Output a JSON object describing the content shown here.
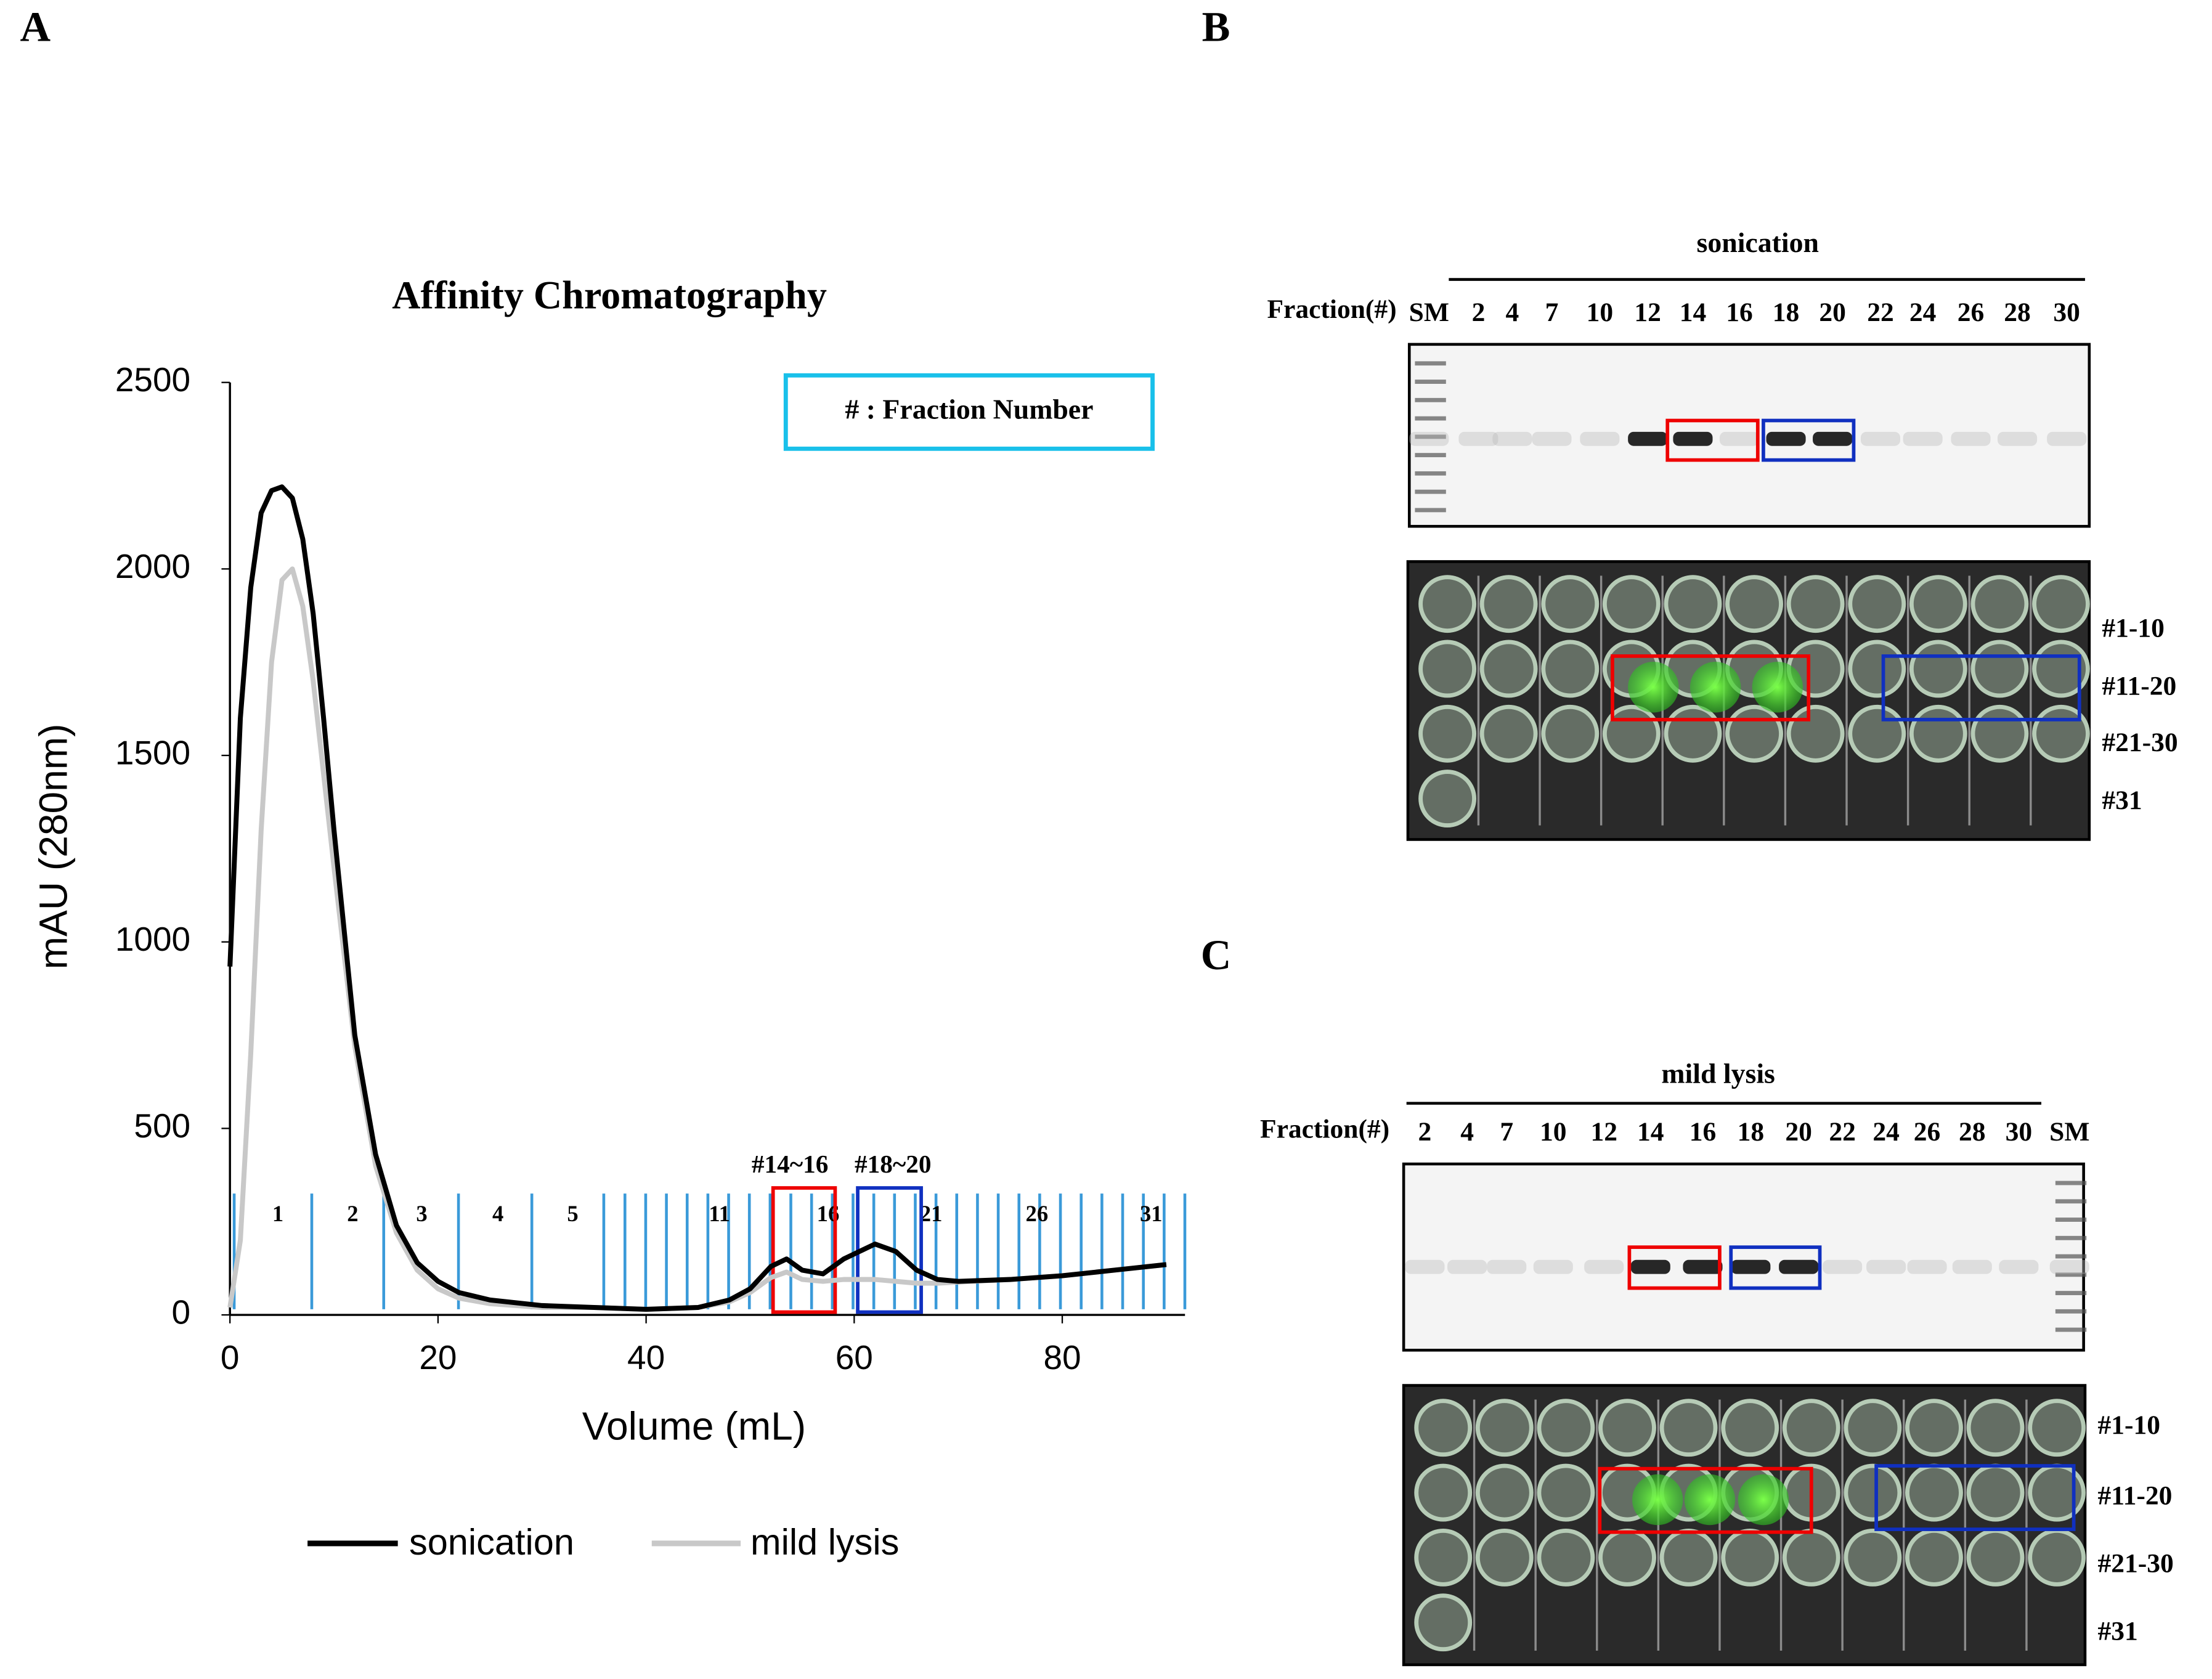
{
  "panel_labels": [
    "A",
    "B",
    "C"
  ],
  "chart_data": {
    "type": "line",
    "title": "Affinity Chromatography",
    "x_label": "Volume (mL)",
    "y_label": "mAU (280nm)",
    "legend_box": "# : Fraction Number",
    "fraction_labels": [
      "1",
      "2",
      "3",
      "4",
      "5",
      "11",
      "16",
      "21",
      "26",
      "31"
    ],
    "annotations": [
      "#14~16",
      "#18~20"
    ],
    "xlim": [
      0,
      90
    ],
    "xticks": [
      0,
      20,
      40,
      60,
      80
    ],
    "ylim": [
      0,
      2500
    ],
    "yticks": [
      0,
      500,
      1000,
      1500,
      2000,
      2500
    ],
    "x": [
      0,
      1,
      2,
      3,
      4,
      5,
      6,
      7,
      8,
      9,
      10,
      12,
      14,
      16,
      18,
      20,
      22,
      25,
      30,
      35,
      40,
      45,
      48,
      50,
      52,
      53.5,
      55,
      57,
      59,
      62,
      64,
      66,
      68,
      70,
      75,
      80,
      85,
      90
    ],
    "series": [
      {
        "name": "sonication",
        "color": "#000000",
        "values": [
          934,
          1600,
          1950,
          2150,
          2210,
          2220,
          2190,
          2080,
          1880,
          1600,
          1300,
          750,
          430,
          240,
          140,
          90,
          60,
          40,
          25,
          20,
          15,
          20,
          40,
          70,
          130,
          150,
          120,
          110,
          150,
          190,
          170,
          120,
          95,
          90,
          95,
          105,
          120,
          135
        ]
      },
      {
        "name": "mild lysis",
        "color": "#c8c8c8",
        "values": [
          20,
          200,
          700,
          1300,
          1750,
          1970,
          2000,
          1900,
          1700,
          1450,
          1200,
          720,
          400,
          220,
          120,
          70,
          45,
          30,
          20,
          20,
          15,
          20,
          35,
          60,
          100,
          115,
          95,
          90,
          95,
          95,
          90,
          85,
          85,
          88,
          95,
          105,
          120,
          135
        ]
      }
    ]
  },
  "gels": [
    {
      "title": "sonication",
      "fraction_label": "Fraction(#)",
      "lanes": [
        "SM",
        "2",
        "4",
        "7",
        "10",
        "12",
        "14",
        "16",
        "18",
        "20",
        "22",
        "24",
        "26",
        "28",
        "30"
      ],
      "rows": [
        "#1-10",
        "#11-20",
        "#21-30",
        "#31"
      ]
    },
    {
      "title": "mild lysis",
      "fraction_label": "Fraction(#)",
      "lanes": [
        "2",
        "4",
        "7",
        "10",
        "12",
        "14",
        "16",
        "18",
        "20",
        "22",
        "24",
        "26",
        "28",
        "30",
        "SM"
      ],
      "rows": [
        "#1-10",
        "#11-20",
        "#21-30",
        "#31"
      ]
    }
  ]
}
